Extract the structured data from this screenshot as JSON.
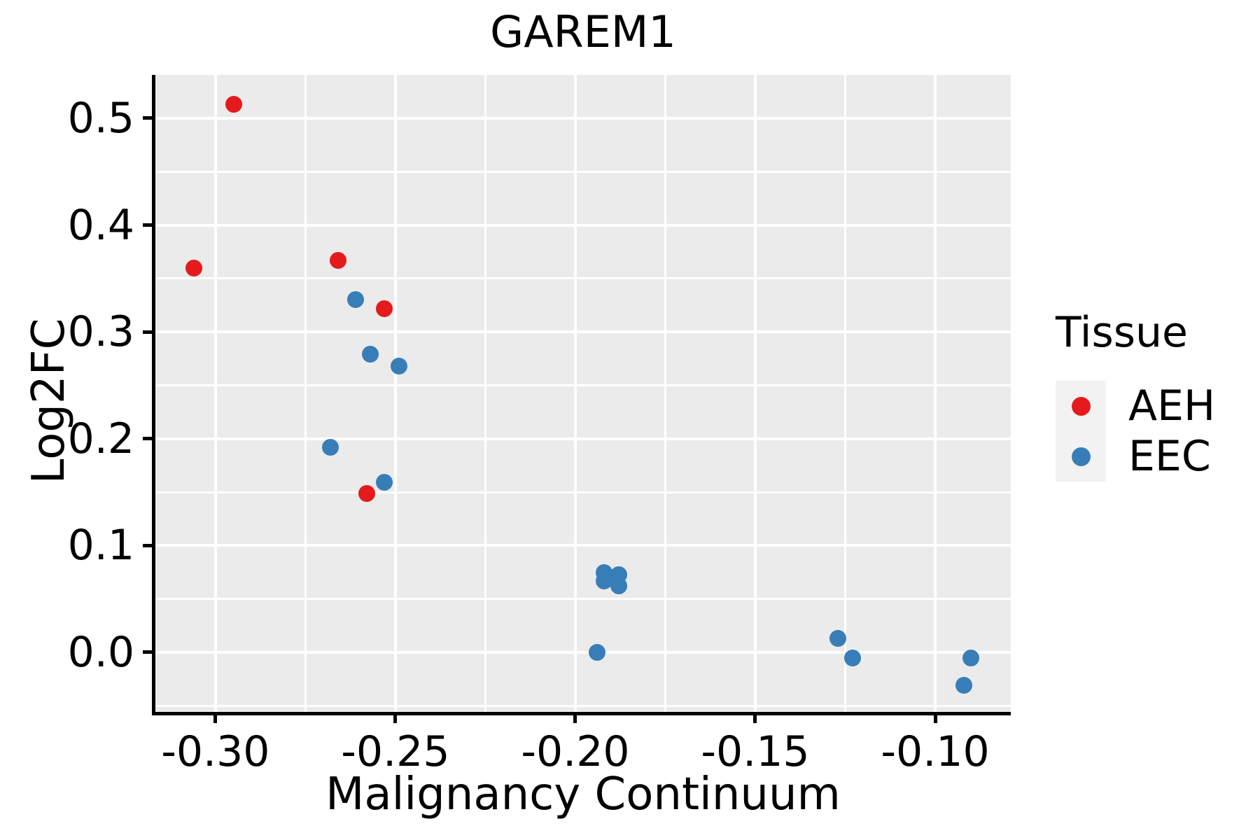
{
  "chart_data": {
    "type": "scatter",
    "title": "GAREM1",
    "xlabel": "Malignancy Continuum",
    "ylabel": "Log2FC",
    "legend_title": "Tissue",
    "legend_position": "right",
    "panel_background": "#EBEBEB",
    "grid_color": "#FFFFFF",
    "marker_diameter_px": 24,
    "xlim": [
      -0.3167,
      -0.079
    ],
    "ylim": [
      -0.0557,
      0.5406
    ],
    "x_axis": {
      "major_ticks": [
        -0.3,
        -0.25,
        -0.2,
        -0.15,
        -0.1
      ],
      "major_labels": [
        "-0.30",
        "-0.25",
        "-0.20",
        "-0.15",
        "-0.10"
      ],
      "minor_ticks": [
        -0.275,
        -0.225,
        -0.175,
        -0.125
      ]
    },
    "y_axis": {
      "major_ticks": [
        0.0,
        0.1,
        0.2,
        0.3,
        0.4,
        0.5
      ],
      "major_labels": [
        "0.0",
        "0.1",
        "0.2",
        "0.3",
        "0.4",
        "0.5"
      ],
      "minor_ticks": [
        -0.05,
        0.05,
        0.15,
        0.25,
        0.35,
        0.45
      ]
    },
    "series": [
      {
        "name": "AEH",
        "color": "#E41A1C",
        "points": [
          [
            -0.295,
            0.513
          ],
          [
            -0.306,
            0.36
          ],
          [
            -0.266,
            0.367
          ],
          [
            -0.253,
            0.322
          ],
          [
            -0.258,
            0.149
          ]
        ]
      },
      {
        "name": "EEC",
        "color": "#377EB8",
        "points": [
          [
            -0.261,
            0.33
          ],
          [
            -0.257,
            0.279
          ],
          [
            -0.249,
            0.268
          ],
          [
            -0.268,
            0.192
          ],
          [
            -0.253,
            0.159
          ],
          [
            -0.192,
            0.075
          ],
          [
            -0.188,
            0.073
          ],
          [
            -0.19,
            0.07
          ],
          [
            -0.192,
            0.067
          ],
          [
            -0.188,
            0.062
          ],
          [
            -0.194,
            0.0
          ],
          [
            -0.127,
            0.013
          ],
          [
            -0.123,
            -0.005
          ],
          [
            -0.09,
            -0.005
          ],
          [
            -0.092,
            -0.031
          ]
        ]
      }
    ]
  }
}
